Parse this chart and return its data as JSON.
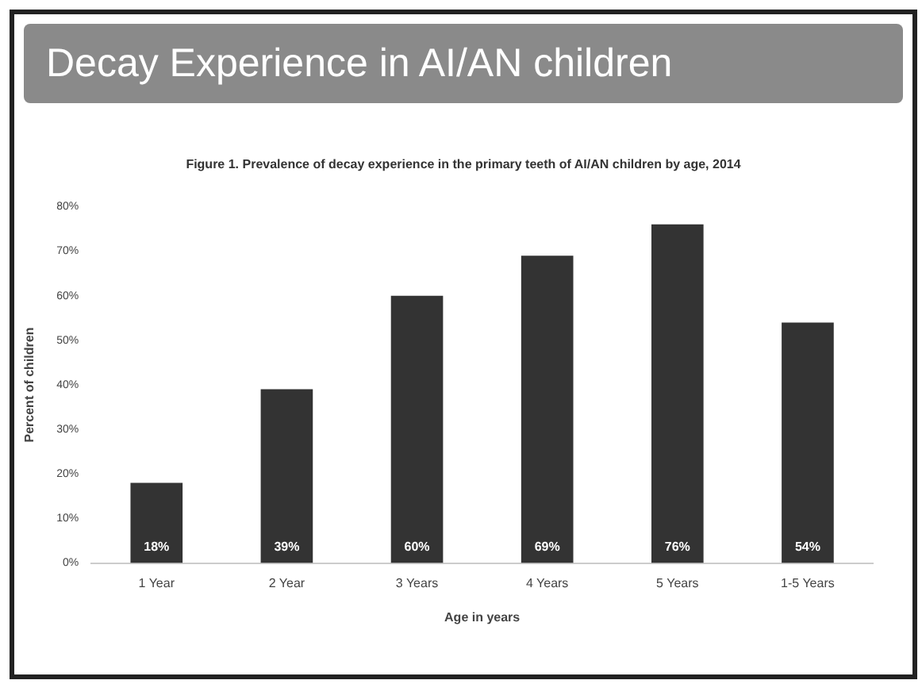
{
  "chart_data": {
    "type": "bar",
    "title": "Decay Experience in AI/AN children",
    "subtitle": "Figure 1. Prevalence of decay experience in the primary teeth of AI/AN children by age, 2014",
    "categories": [
      "1 Year",
      "2 Year",
      "3 Years",
      "4 Years",
      "5 Years",
      "1-5 Years"
    ],
    "values": [
      18,
      39,
      60,
      69,
      76,
      54
    ],
    "value_labels": [
      "18%",
      "39%",
      "60%",
      "69%",
      "76%",
      "54%"
    ],
    "color": "#333333",
    "ylim": [
      0,
      80
    ],
    "yticks": [
      {
        "value": 0,
        "label": "0%"
      },
      {
        "value": 10,
        "label": "10%"
      },
      {
        "value": 20,
        "label": "20%"
      },
      {
        "value": 30,
        "label": "30%"
      },
      {
        "value": 40,
        "label": "40%"
      },
      {
        "value": 50,
        "label": "50%"
      },
      {
        "value": 60,
        "label": "60%"
      },
      {
        "value": 70,
        "label": "70%"
      },
      {
        "value": 80,
        "label": "80%"
      }
    ],
    "xlabel": "Age in years",
    "ylabel": "Percent of children",
    "grid": false,
    "legend": false
  }
}
